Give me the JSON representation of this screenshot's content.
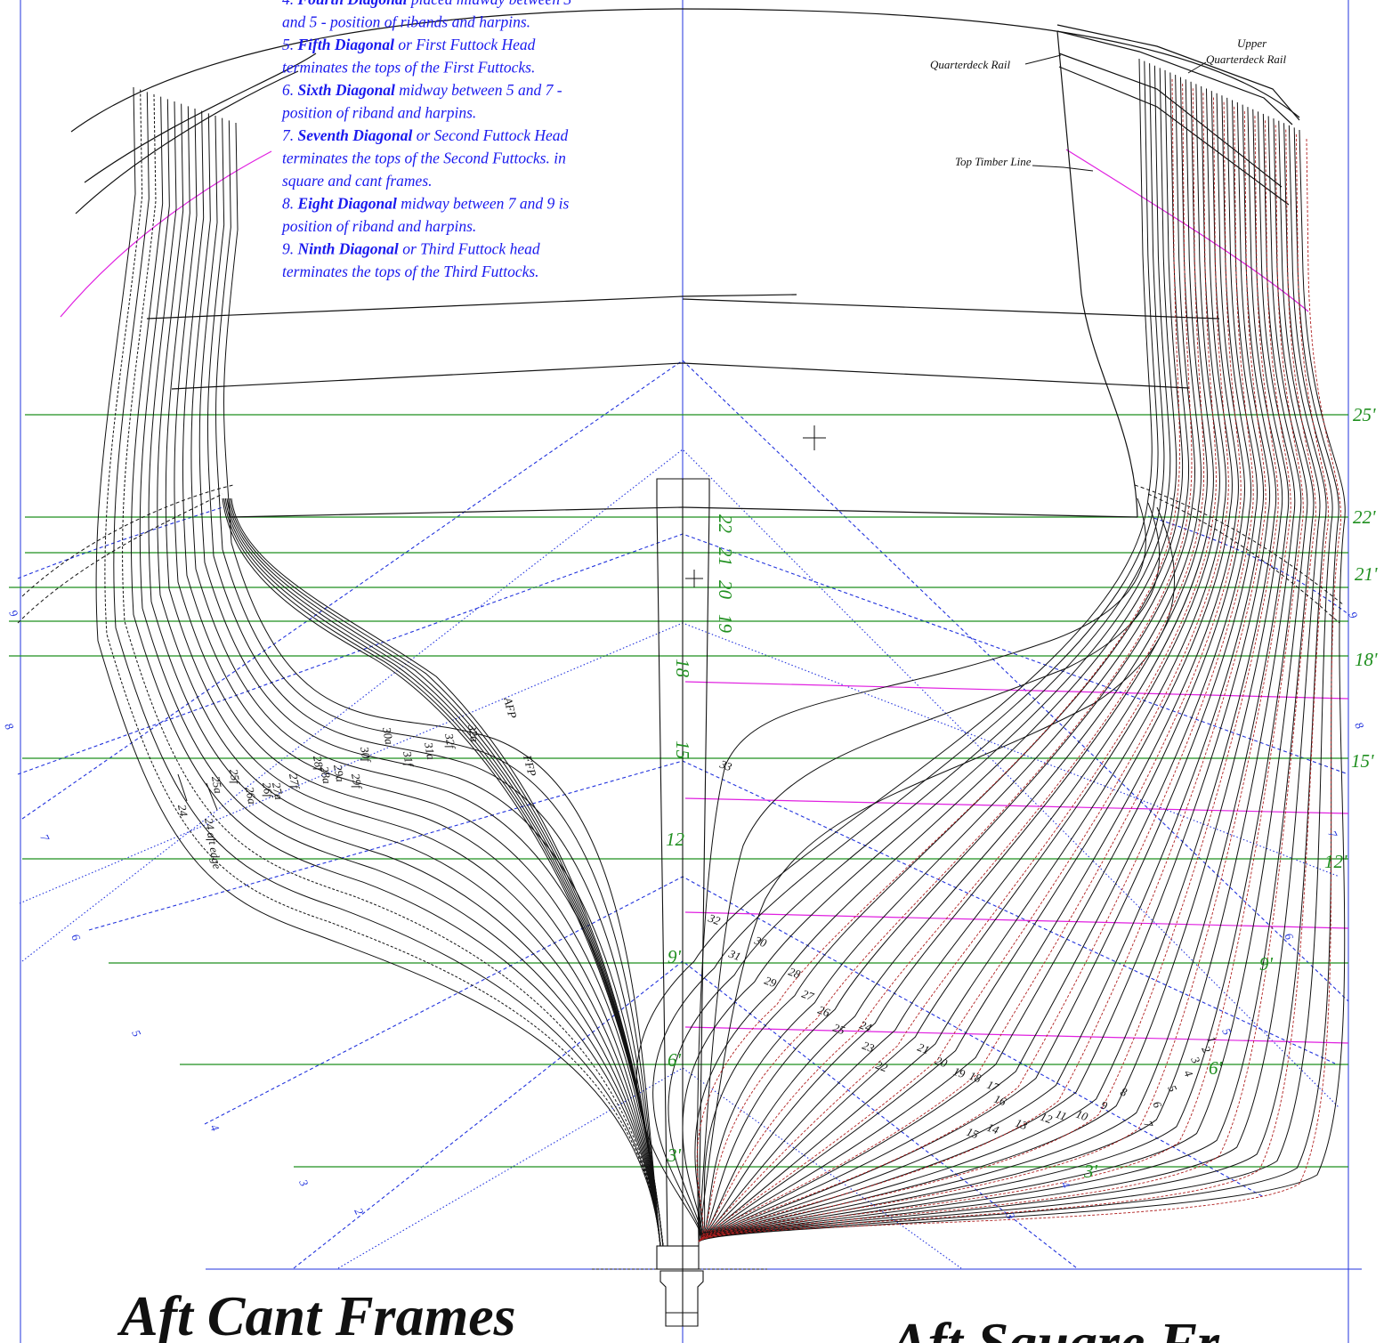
{
  "notes": [
    [
      {
        "t": "4. "
      },
      {
        "t": "Fourth Diagonal",
        "b": true
      },
      {
        "t": " placed midway between 3"
      }
    ],
    [
      {
        "t": "and 5 - position of ribands and harpins."
      }
    ],
    [
      {
        "t": "5. "
      },
      {
        "t": "Fifth Diagonal",
        "b": true
      },
      {
        "t": " or First Futtock Head"
      }
    ],
    [
      {
        "t": "terminates the tops of the First Futtocks."
      }
    ],
    [
      {
        "t": "6. "
      },
      {
        "t": "Sixth Diagonal",
        "b": true
      },
      {
        "t": " midway between 5 and 7 -"
      }
    ],
    [
      {
        "t": "position of riband and harpins."
      }
    ],
    [
      {
        "t": "7. "
      },
      {
        "t": "Seventh Diagonal",
        "b": true
      },
      {
        "t": " or Second Futtock Head"
      }
    ],
    [
      {
        "t": "terminates the tops of the Second Futtocks. in"
      }
    ],
    [
      {
        "t": "square and cant frames."
      }
    ],
    [
      {
        "t": "8. "
      },
      {
        "t": "Eight Diagonal",
        "b": true
      },
      {
        "t": " midway between 7 and 9 is"
      }
    ],
    [
      {
        "t": "position of riband and harpins."
      }
    ],
    [
      {
        "t": "9. "
      },
      {
        "t": "Ninth Diagonal",
        "b": true
      },
      {
        "t": " or Third Futtock head"
      }
    ],
    [
      {
        "t": "terminates the tops of the Third Futtocks."
      }
    ]
  ],
  "labels": {
    "quarterdeck_rail": "Quarterdeck Rail",
    "upper": "Upper",
    "upper_quarterdeck_rail": "Quarterdeck Rail",
    "top_timber_line": "Top Timber Line",
    "afp": "AFP",
    "ffp": "FFP",
    "aft_edge": "24 aft edge",
    "frame_24": "24"
  },
  "waterlines_right": [
    "25'",
    "22'",
    "21'",
    "18'",
    "15'",
    "12'",
    "9'",
    "6'",
    "3'"
  ],
  "centre_heights": [
    "22",
    "21",
    "20",
    "19",
    "18",
    "15",
    "12",
    "9'",
    "6'",
    "3'"
  ],
  "diagonal_numbers": [
    "2",
    "3",
    "4",
    "5",
    "6",
    "7",
    "8",
    "9"
  ],
  "cant_frames": [
    "32a",
    "32f",
    "31a",
    "31f",
    "30a",
    "30f",
    "29f",
    "29a",
    "28f",
    "28a",
    "27f",
    "27a",
    "26f",
    "26a",
    "25f",
    "25a"
  ],
  "square_frames_bottom": [
    "33",
    "32",
    "31",
    "30",
    "29",
    "28",
    "27",
    "26",
    "25",
    "24",
    "23",
    "22",
    "21",
    "20",
    "19",
    "18",
    "17",
    "16",
    "15",
    "14",
    "13",
    "12",
    "11",
    "10",
    "9",
    "8",
    "7",
    "6",
    "5",
    "4",
    "3",
    "2",
    "1"
  ],
  "colors": {
    "frame": "#111111",
    "diagonal": "#2233dd",
    "waterline": "#1f8f1f",
    "topline": "#e020e0",
    "dashed": "#b02020"
  },
  "titles": {
    "left": "Aft Cant Frames",
    "right": "Aft Square Fr"
  }
}
